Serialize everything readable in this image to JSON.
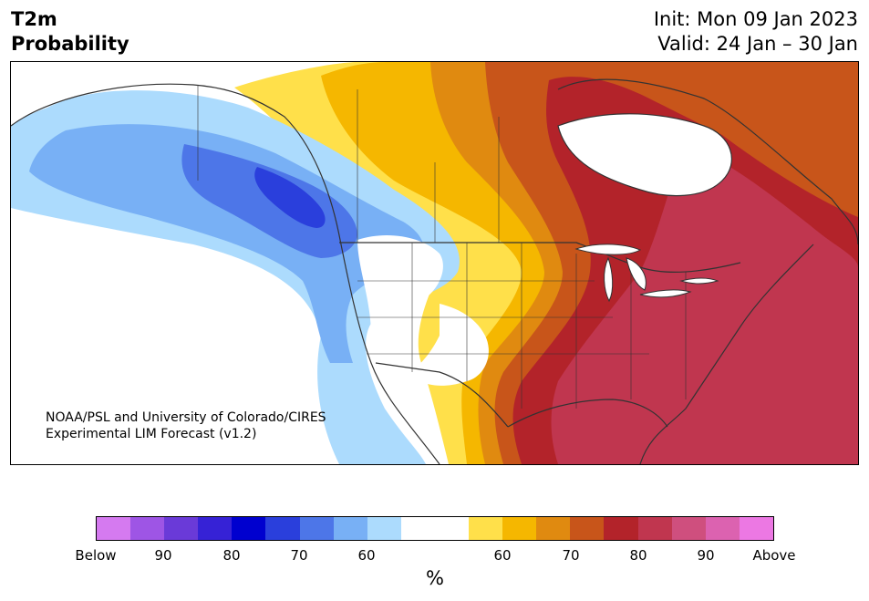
{
  "header": {
    "title_line1": "T2m",
    "title_line2": "Probability",
    "init": "Init: Mon 09 Jan 2023",
    "valid": "Valid: 24 Jan – 30 Jan"
  },
  "credit": {
    "line1": "NOAA/PSL and University of Colorado/CIRES",
    "line2": "Experimental LIM Forecast (v1.2)"
  },
  "legend": {
    "unit": "%",
    "labels": [
      "Below",
      "90",
      "80",
      "70",
      "60",
      "60",
      "70",
      "80",
      "90",
      "Above"
    ],
    "colors": [
      "#d57af0",
      "#9e55e5",
      "#6a3ad8",
      "#3622d6",
      "#0000cf",
      "#2a3fdc",
      "#4d76e8",
      "#78b0f5",
      "#acdbfd",
      "#ffffff",
      "#ffffff",
      "#ffe04a",
      "#f5b700",
      "#e08a10",
      "#c8551a",
      "#b3232a",
      "#c0364f",
      "#cf4f7e",
      "#dc62b0",
      "#ec78e3"
    ]
  },
  "map": {
    "colors": {
      "ocean": "#ffffff",
      "land_neutral": "#ffffff",
      "border": "#333333"
    }
  }
}
